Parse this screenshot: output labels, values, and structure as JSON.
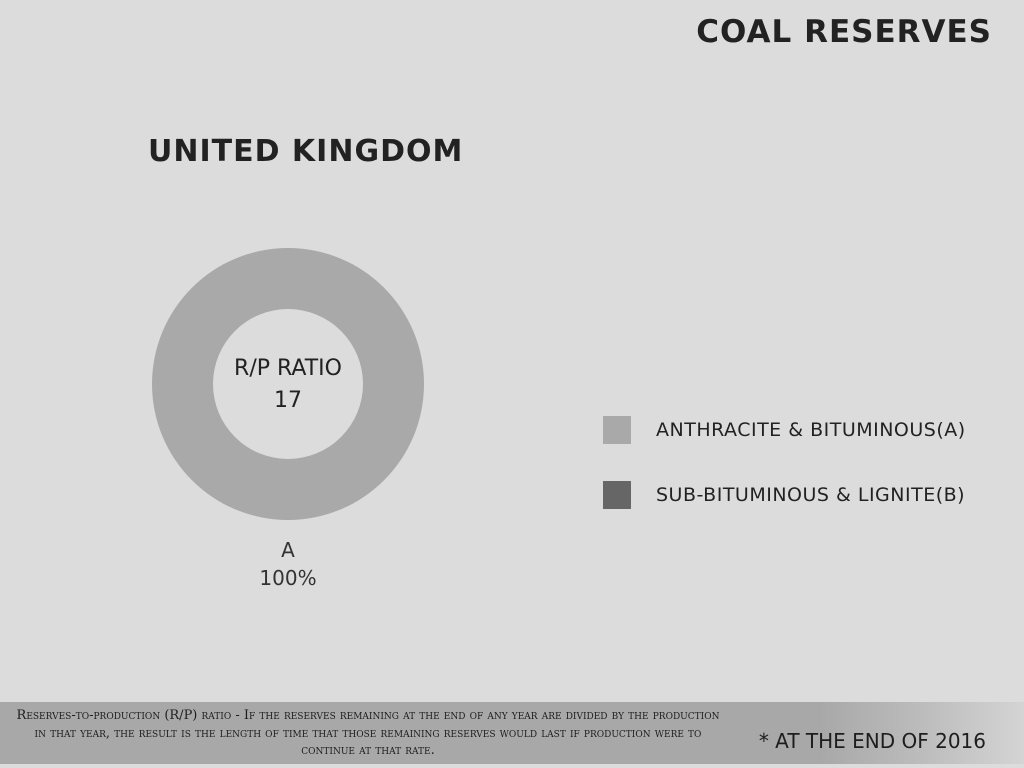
{
  "header": {
    "title": "COAL RESERVES"
  },
  "chart_data": {
    "type": "pie",
    "title": "UNITED KINGDOM",
    "center_label_line1": "R/P RATIO",
    "center_value": "17",
    "slices": [
      {
        "label": "A",
        "value": 100,
        "display": "100%",
        "color": "#a9a9a9"
      },
      {
        "label": "B",
        "value": 0,
        "display": "",
        "color": "#666666"
      }
    ],
    "legend": [
      {
        "label": "ANTHRACITE & BITUMINOUS(A)",
        "color": "#a9a9a9"
      },
      {
        "label": "SUB-BITUMINOUS & LIGNITE(B)",
        "color": "#666666"
      }
    ],
    "legend_position": "right",
    "style": "donut"
  },
  "footer": {
    "note": "Reserves-to-production (R/P) ratio - If the reserves remaining at the end of any year are divided by the production in that year, the result is the length of time that those remaining reserves would last if production were to continue at that rate.",
    "date_note": "* AT THE END OF 2016"
  }
}
